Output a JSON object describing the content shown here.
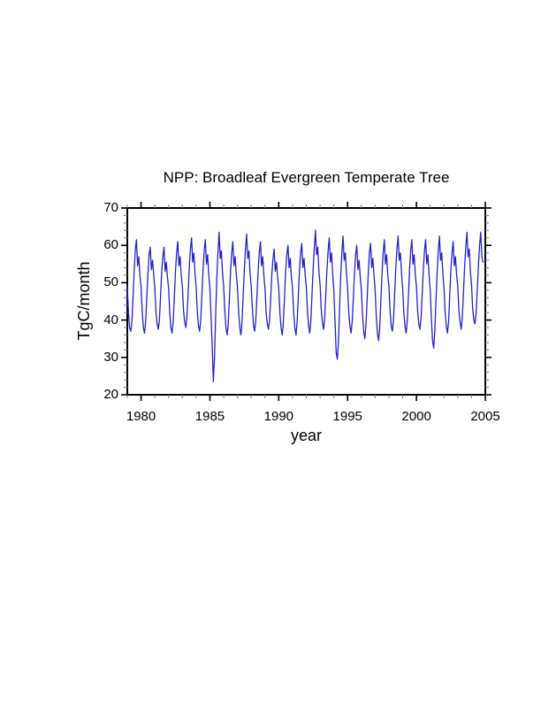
{
  "page": {
    "background_color": "#ffffff"
  },
  "chart_data": {
    "type": "line",
    "title": "NPP: Broadleaf Evergreen Temperate Tree",
    "xlabel": "year",
    "ylabel": "TgC/month",
    "xlim": [
      1979,
      2005
    ],
    "ylim": [
      20,
      70
    ],
    "x_major_ticks": [
      1980,
      1985,
      1990,
      1995,
      2000,
      2005
    ],
    "x_minor_step": 1,
    "y_major_ticks": [
      70,
      60,
      50,
      40,
      30,
      20
    ],
    "y_minor_step": 2,
    "grid": false,
    "tick_direction": "out",
    "legend": "none",
    "frame_color": "#000000",
    "minor_tick_color": "#808080",
    "series": [
      {
        "name": "NPP Broadleaf Evergreen Temperate Tree (monthly)",
        "color": "#2222cc",
        "start_year": 1979,
        "sampling": "monthly Jan-Dec, last year Jan-Nov",
        "values_by_year": [
          [
            49,
            42,
            38,
            37,
            39.5,
            46,
            53,
            59,
            61.5,
            54.5,
            57,
            52
          ],
          [
            49,
            42.5,
            38,
            36.5,
            39.5,
            46,
            52.5,
            57.5,
            59.5,
            53.5,
            56,
            52
          ],
          [
            48.5,
            42,
            39,
            37.5,
            40,
            46.5,
            53,
            57,
            59.5,
            53,
            55.5,
            51.5
          ],
          [
            48.5,
            42,
            38,
            36.5,
            39.5,
            46,
            53,
            58,
            61,
            54.5,
            57,
            52
          ],
          [
            49,
            42.5,
            39.5,
            38,
            41,
            47,
            54,
            59,
            62,
            55.5,
            58,
            52.5
          ],
          [
            49,
            42.5,
            38.5,
            37,
            40,
            46.5,
            53.5,
            58.5,
            61.5,
            55,
            57.5,
            52
          ],
          [
            48.5,
            41,
            33,
            23.5,
            30,
            41,
            51,
            58,
            63.5,
            56.5,
            58.5,
            52.5
          ],
          [
            49,
            42.5,
            38,
            36,
            39,
            46,
            53,
            58,
            61,
            54.5,
            57,
            52
          ],
          [
            49,
            42.5,
            38,
            36,
            39.5,
            46.5,
            53.5,
            59,
            63,
            56.5,
            58.5,
            52.5
          ],
          [
            49,
            43,
            38.5,
            37,
            40,
            46.5,
            53,
            58,
            61,
            54.5,
            57,
            52
          ],
          [
            48.5,
            42,
            39,
            37.5,
            40,
            46,
            52.5,
            56.5,
            59,
            53,
            55.5,
            51.5
          ],
          [
            48.5,
            42,
            38,
            36,
            39.5,
            46,
            53,
            57.5,
            60,
            54,
            56.5,
            51.5
          ],
          [
            48.5,
            42,
            38,
            36,
            39.5,
            46,
            53,
            58,
            60.5,
            54,
            56.5,
            52
          ],
          [
            49,
            42.5,
            38.5,
            36.5,
            40,
            47,
            54,
            59.5,
            64,
            57.5,
            59.5,
            53
          ],
          [
            49.5,
            43,
            39.5,
            37.5,
            40.5,
            47,
            53.5,
            58.5,
            62,
            55.5,
            58,
            52.5
          ],
          [
            48,
            40,
            31.5,
            29.5,
            34,
            43,
            52,
            58,
            62.5,
            56,
            58,
            52.5
          ],
          [
            48.5,
            42,
            38.5,
            36.5,
            39.5,
            46,
            52.5,
            57.5,
            60,
            53.5,
            56,
            51.5
          ],
          [
            48,
            41.5,
            37,
            35,
            38.5,
            45.5,
            52.5,
            58,
            60.5,
            54,
            56.5,
            52
          ],
          [
            48,
            41,
            36.5,
            34.5,
            38,
            45.5,
            52.5,
            58,
            61.5,
            55,
            57.5,
            52
          ],
          [
            49,
            42.5,
            38.5,
            37,
            40,
            47,
            54,
            59,
            62.5,
            56,
            58,
            52.5
          ],
          [
            48.5,
            42,
            38.5,
            36.5,
            40,
            46.5,
            53.5,
            58.5,
            61.5,
            55,
            57.5,
            52
          ],
          [
            49,
            42.5,
            39,
            37.5,
            40.5,
            47,
            53.5,
            58.5,
            61.5,
            55,
            57.5,
            52
          ],
          [
            48,
            40.5,
            34.5,
            32.5,
            37,
            45,
            52.5,
            58.5,
            62.5,
            56,
            58,
            52.5
          ],
          [
            48.5,
            42,
            38.5,
            36.5,
            39.5,
            46.5,
            53.5,
            58,
            61,
            54.5,
            57,
            52
          ],
          [
            49,
            42.5,
            39.5,
            37.5,
            41,
            47.5,
            54.5,
            59.5,
            63.5,
            57,
            59,
            53
          ],
          [
            49.5,
            43,
            40,
            39,
            42,
            48,
            54.5,
            60,
            63.5,
            57,
            55.5
          ]
        ]
      }
    ]
  }
}
